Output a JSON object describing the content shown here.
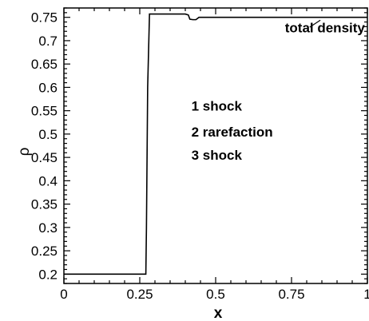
{
  "chart_data": {
    "type": "line",
    "xlabel": "x",
    "ylabel": "ρ",
    "xlim": [
      0,
      1
    ],
    "ylim": [
      0.18,
      0.77
    ],
    "grid": false,
    "x_ticks": [
      {
        "value": 0,
        "label": "0"
      },
      {
        "value": 0.25,
        "label": "0.25"
      },
      {
        "value": 0.5,
        "label": "0.5"
      },
      {
        "value": 0.75,
        "label": "0.75"
      },
      {
        "value": 1,
        "label": "1"
      }
    ],
    "y_ticks": [
      {
        "value": 0.2,
        "label": "0.2"
      },
      {
        "value": 0.25,
        "label": "0.25"
      },
      {
        "value": 0.3,
        "label": "0.3"
      },
      {
        "value": 0.35,
        "label": "0.35"
      },
      {
        "value": 0.4,
        "label": "0.4"
      },
      {
        "value": 0.45,
        "label": "0.45"
      },
      {
        "value": 0.5,
        "label": "0.5"
      },
      {
        "value": 0.55,
        "label": "0.55"
      },
      {
        "value": 0.6,
        "label": "0.6"
      },
      {
        "value": 0.65,
        "label": "0.65"
      },
      {
        "value": 0.7,
        "label": "0.7"
      },
      {
        "value": 0.75,
        "label": "0.75"
      }
    ],
    "series": [
      {
        "name": "total density",
        "x": [
          0,
          0.27,
          0.272,
          0.276,
          0.282,
          0.4,
          0.41,
          0.415,
          0.425,
          0.435,
          0.445,
          1.0
        ],
        "y": [
          0.2,
          0.2,
          0.3,
          0.6,
          0.757,
          0.757,
          0.755,
          0.746,
          0.745,
          0.745,
          0.75,
          0.75
        ]
      }
    ],
    "annotations": [
      {
        "text": "total density",
        "x": 0.86,
        "y": 0.718,
        "pointer_from": [
          0.81,
          0.729
        ],
        "pointer_to": [
          0.845,
          0.744
        ]
      },
      {
        "text": "1 shock",
        "x": 0.42,
        "y": 0.55
      },
      {
        "text": "2 rarefaction",
        "x": 0.42,
        "y": 0.495
      },
      {
        "text": "3 shock",
        "x": 0.42,
        "y": 0.445
      }
    ]
  }
}
